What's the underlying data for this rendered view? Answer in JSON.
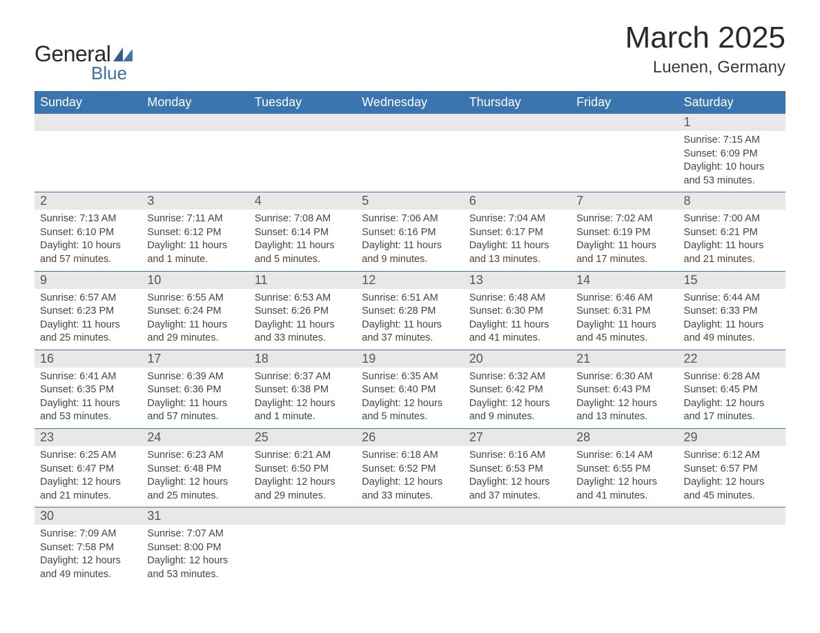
{
  "logo": {
    "text1": "General",
    "text2": "Blue"
  },
  "title": "March 2025",
  "location": "Luenen, Germany",
  "colors": {
    "header_bg": "#3a75b0",
    "header_text": "#ffffff",
    "daynum_bg": "#e8e8e8",
    "border": "#3a75b0",
    "body_text": "#444444",
    "logo_blue": "#3a6fa8"
  },
  "weekdays": [
    "Sunday",
    "Monday",
    "Tuesday",
    "Wednesday",
    "Thursday",
    "Friday",
    "Saturday"
  ],
  "weeks": [
    [
      null,
      null,
      null,
      null,
      null,
      null,
      {
        "n": "1",
        "sr": "Sunrise: 7:15 AM",
        "ss": "Sunset: 6:09 PM",
        "d1": "Daylight: 10 hours",
        "d2": "and 53 minutes."
      }
    ],
    [
      {
        "n": "2",
        "sr": "Sunrise: 7:13 AM",
        "ss": "Sunset: 6:10 PM",
        "d1": "Daylight: 10 hours",
        "d2": "and 57 minutes."
      },
      {
        "n": "3",
        "sr": "Sunrise: 7:11 AM",
        "ss": "Sunset: 6:12 PM",
        "d1": "Daylight: 11 hours",
        "d2": "and 1 minute."
      },
      {
        "n": "4",
        "sr": "Sunrise: 7:08 AM",
        "ss": "Sunset: 6:14 PM",
        "d1": "Daylight: 11 hours",
        "d2": "and 5 minutes."
      },
      {
        "n": "5",
        "sr": "Sunrise: 7:06 AM",
        "ss": "Sunset: 6:16 PM",
        "d1": "Daylight: 11 hours",
        "d2": "and 9 minutes."
      },
      {
        "n": "6",
        "sr": "Sunrise: 7:04 AM",
        "ss": "Sunset: 6:17 PM",
        "d1": "Daylight: 11 hours",
        "d2": "and 13 minutes."
      },
      {
        "n": "7",
        "sr": "Sunrise: 7:02 AM",
        "ss": "Sunset: 6:19 PM",
        "d1": "Daylight: 11 hours",
        "d2": "and 17 minutes."
      },
      {
        "n": "8",
        "sr": "Sunrise: 7:00 AM",
        "ss": "Sunset: 6:21 PM",
        "d1": "Daylight: 11 hours",
        "d2": "and 21 minutes."
      }
    ],
    [
      {
        "n": "9",
        "sr": "Sunrise: 6:57 AM",
        "ss": "Sunset: 6:23 PM",
        "d1": "Daylight: 11 hours",
        "d2": "and 25 minutes."
      },
      {
        "n": "10",
        "sr": "Sunrise: 6:55 AM",
        "ss": "Sunset: 6:24 PM",
        "d1": "Daylight: 11 hours",
        "d2": "and 29 minutes."
      },
      {
        "n": "11",
        "sr": "Sunrise: 6:53 AM",
        "ss": "Sunset: 6:26 PM",
        "d1": "Daylight: 11 hours",
        "d2": "and 33 minutes."
      },
      {
        "n": "12",
        "sr": "Sunrise: 6:51 AM",
        "ss": "Sunset: 6:28 PM",
        "d1": "Daylight: 11 hours",
        "d2": "and 37 minutes."
      },
      {
        "n": "13",
        "sr": "Sunrise: 6:48 AM",
        "ss": "Sunset: 6:30 PM",
        "d1": "Daylight: 11 hours",
        "d2": "and 41 minutes."
      },
      {
        "n": "14",
        "sr": "Sunrise: 6:46 AM",
        "ss": "Sunset: 6:31 PM",
        "d1": "Daylight: 11 hours",
        "d2": "and 45 minutes."
      },
      {
        "n": "15",
        "sr": "Sunrise: 6:44 AM",
        "ss": "Sunset: 6:33 PM",
        "d1": "Daylight: 11 hours",
        "d2": "and 49 minutes."
      }
    ],
    [
      {
        "n": "16",
        "sr": "Sunrise: 6:41 AM",
        "ss": "Sunset: 6:35 PM",
        "d1": "Daylight: 11 hours",
        "d2": "and 53 minutes."
      },
      {
        "n": "17",
        "sr": "Sunrise: 6:39 AM",
        "ss": "Sunset: 6:36 PM",
        "d1": "Daylight: 11 hours",
        "d2": "and 57 minutes."
      },
      {
        "n": "18",
        "sr": "Sunrise: 6:37 AM",
        "ss": "Sunset: 6:38 PM",
        "d1": "Daylight: 12 hours",
        "d2": "and 1 minute."
      },
      {
        "n": "19",
        "sr": "Sunrise: 6:35 AM",
        "ss": "Sunset: 6:40 PM",
        "d1": "Daylight: 12 hours",
        "d2": "and 5 minutes."
      },
      {
        "n": "20",
        "sr": "Sunrise: 6:32 AM",
        "ss": "Sunset: 6:42 PM",
        "d1": "Daylight: 12 hours",
        "d2": "and 9 minutes."
      },
      {
        "n": "21",
        "sr": "Sunrise: 6:30 AM",
        "ss": "Sunset: 6:43 PM",
        "d1": "Daylight: 12 hours",
        "d2": "and 13 minutes."
      },
      {
        "n": "22",
        "sr": "Sunrise: 6:28 AM",
        "ss": "Sunset: 6:45 PM",
        "d1": "Daylight: 12 hours",
        "d2": "and 17 minutes."
      }
    ],
    [
      {
        "n": "23",
        "sr": "Sunrise: 6:25 AM",
        "ss": "Sunset: 6:47 PM",
        "d1": "Daylight: 12 hours",
        "d2": "and 21 minutes."
      },
      {
        "n": "24",
        "sr": "Sunrise: 6:23 AM",
        "ss": "Sunset: 6:48 PM",
        "d1": "Daylight: 12 hours",
        "d2": "and 25 minutes."
      },
      {
        "n": "25",
        "sr": "Sunrise: 6:21 AM",
        "ss": "Sunset: 6:50 PM",
        "d1": "Daylight: 12 hours",
        "d2": "and 29 minutes."
      },
      {
        "n": "26",
        "sr": "Sunrise: 6:18 AM",
        "ss": "Sunset: 6:52 PM",
        "d1": "Daylight: 12 hours",
        "d2": "and 33 minutes."
      },
      {
        "n": "27",
        "sr": "Sunrise: 6:16 AM",
        "ss": "Sunset: 6:53 PM",
        "d1": "Daylight: 12 hours",
        "d2": "and 37 minutes."
      },
      {
        "n": "28",
        "sr": "Sunrise: 6:14 AM",
        "ss": "Sunset: 6:55 PM",
        "d1": "Daylight: 12 hours",
        "d2": "and 41 minutes."
      },
      {
        "n": "29",
        "sr": "Sunrise: 6:12 AM",
        "ss": "Sunset: 6:57 PM",
        "d1": "Daylight: 12 hours",
        "d2": "and 45 minutes."
      }
    ],
    [
      {
        "n": "30",
        "sr": "Sunrise: 7:09 AM",
        "ss": "Sunset: 7:58 PM",
        "d1": "Daylight: 12 hours",
        "d2": "and 49 minutes."
      },
      {
        "n": "31",
        "sr": "Sunrise: 7:07 AM",
        "ss": "Sunset: 8:00 PM",
        "d1": "Daylight: 12 hours",
        "d2": "and 53 minutes."
      },
      null,
      null,
      null,
      null,
      null
    ]
  ]
}
